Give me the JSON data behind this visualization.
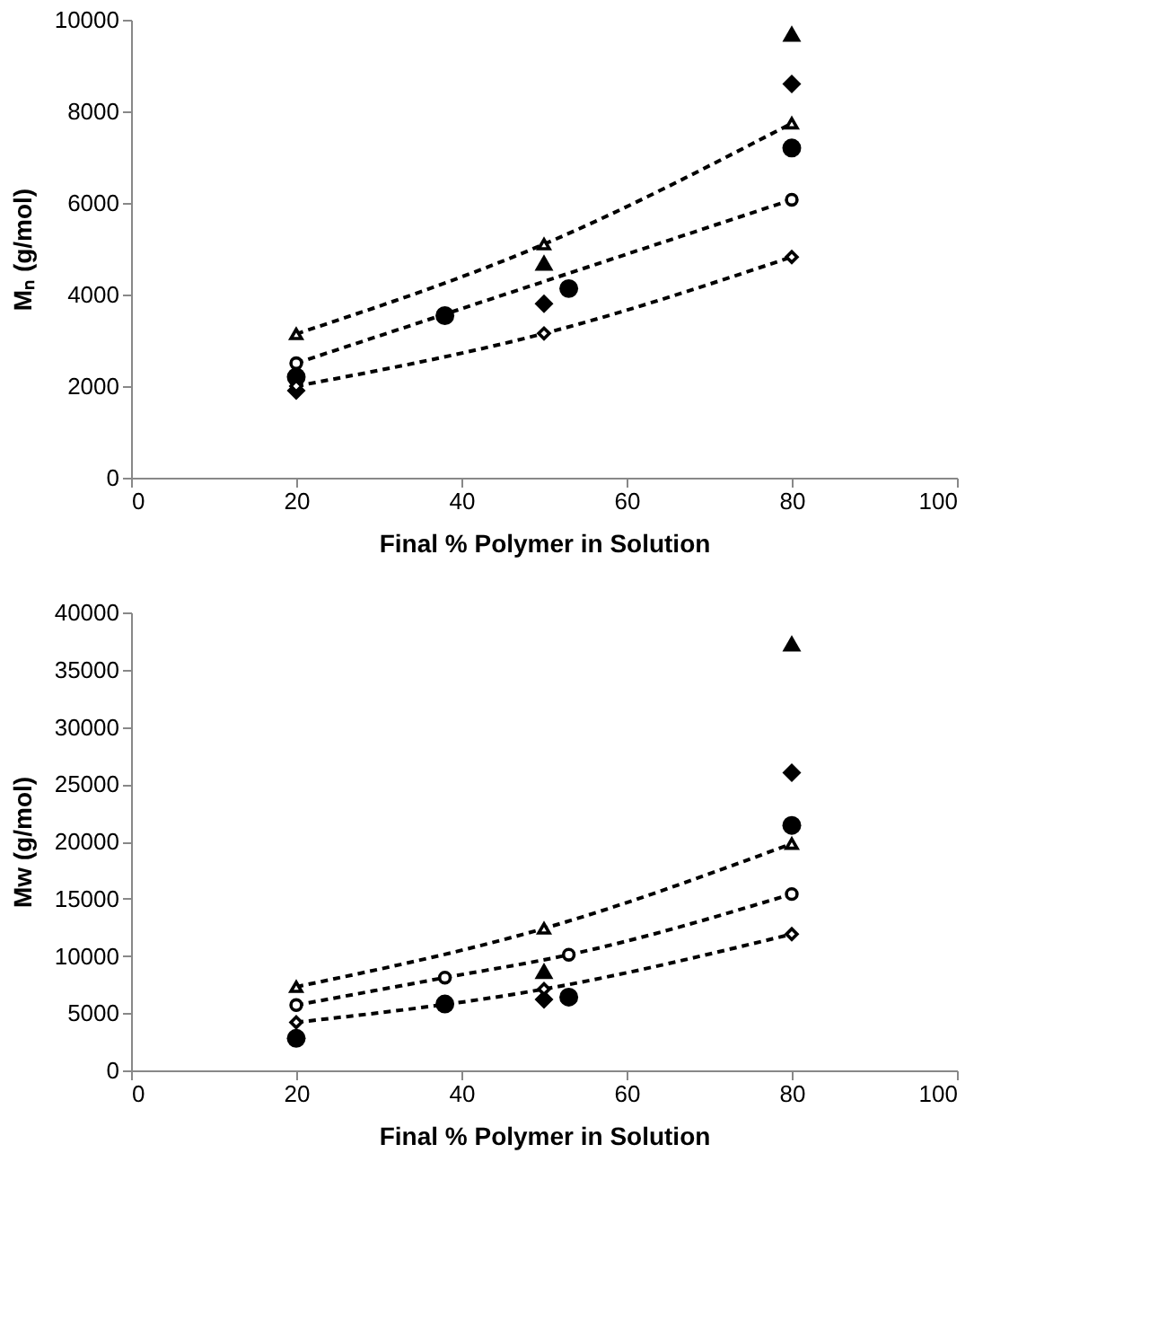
{
  "chart_data": [
    {
      "type": "scatter",
      "xlabel": "Final % Polymer in Solution",
      "ylabel": "Mₙ (g/mol)",
      "xlim": [
        0,
        100
      ],
      "xticks": [
        0,
        20,
        40,
        60,
        80,
        100
      ],
      "ylim": [
        0,
        10000
      ],
      "yticks": [
        0,
        2000,
        4000,
        6000,
        8000,
        10000
      ],
      "grid": false,
      "series": [
        {
          "marker": "circle",
          "color": "#000000",
          "x": [
            20,
            38,
            53,
            80
          ],
          "values": [
            2200,
            3540,
            4130,
            7200
          ]
        },
        {
          "marker": "diamond",
          "color": "#000000",
          "x": [
            20,
            50,
            80
          ],
          "values": [
            1900,
            3800,
            8600
          ]
        },
        {
          "marker": "triangle",
          "color": "#000000",
          "x": [
            50,
            80
          ],
          "values": [
            4700,
            9700
          ]
        },
        {
          "type": "line",
          "marker": "triangle",
          "line_style": "dashed",
          "color": "#000000",
          "x": [
            20,
            50,
            80
          ],
          "values": [
            3140,
            5100,
            7740
          ]
        },
        {
          "type": "line",
          "marker": "circle",
          "line_style": "dashed",
          "color": "#000000",
          "x": [
            20,
            80
          ],
          "values": [
            2500,
            6070
          ]
        },
        {
          "type": "line",
          "marker": "diamond",
          "line_style": "dashed",
          "color": "#000000",
          "x": [
            20,
            50,
            80
          ],
          "values": [
            2000,
            3150,
            4820
          ]
        }
      ]
    },
    {
      "type": "scatter",
      "xlabel": "Final % Polymer in Solution",
      "ylabel": "Mw (g/mol)",
      "xlim": [
        0,
        100
      ],
      "xticks": [
        0,
        20,
        40,
        60,
        80,
        100
      ],
      "ylim": [
        0,
        40000
      ],
      "yticks": [
        0,
        5000,
        10000,
        15000,
        20000,
        25000,
        30000,
        35000,
        40000
      ],
      "grid": false,
      "series": [
        {
          "marker": "circle",
          "color": "#000000",
          "x": [
            20,
            38,
            53,
            80
          ],
          "values": [
            2800,
            5800,
            6400,
            21400
          ]
        },
        {
          "marker": "diamond",
          "color": "#000000",
          "x": [
            50,
            80
          ],
          "values": [
            6200,
            26000
          ]
        },
        {
          "marker": "triangle",
          "color": "#000000",
          "x": [
            50,
            80
          ],
          "values": [
            8700,
            37300
          ]
        },
        {
          "type": "line",
          "marker": "triangle",
          "line_style": "dashed",
          "color": "#000000",
          "x": [
            20,
            50,
            80
          ],
          "values": [
            7300,
            12400,
            19800
          ]
        },
        {
          "type": "line",
          "marker": "circle",
          "line_style": "dashed",
          "color": "#000000",
          "x": [
            20,
            38,
            53,
            80
          ],
          "values": [
            5700,
            8100,
            10100,
            15400
          ]
        },
        {
          "type": "line",
          "marker": "diamond",
          "line_style": "dashed",
          "color": "#000000",
          "x": [
            20,
            50,
            80
          ],
          "values": [
            4200,
            7100,
            11900
          ]
        }
      ]
    }
  ]
}
